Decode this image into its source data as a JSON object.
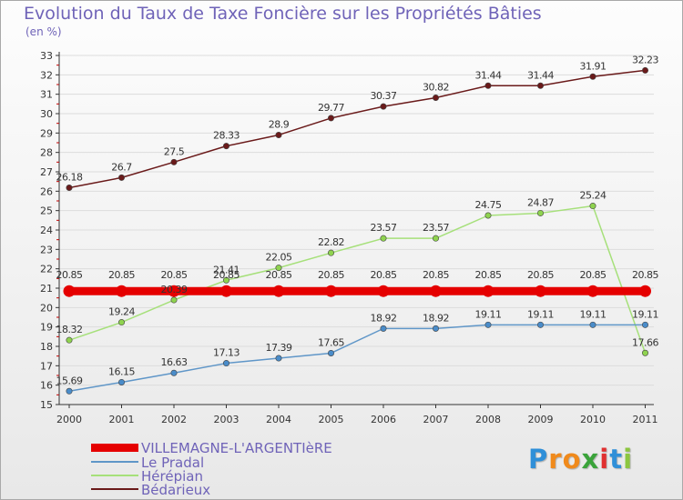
{
  "title": "Evolution du Taux de Taxe Foncière sur les Propriétés Bâties",
  "unit_label": "(en %)",
  "chart_data": {
    "type": "line",
    "title": "Evolution du Taux de Taxe Foncière sur les Propriétés Bâties",
    "ylabel": "(en %)",
    "xlabel": "",
    "ylim": [
      15,
      33
    ],
    "y_ticks": [
      15,
      16,
      17,
      18,
      19,
      20,
      21,
      22,
      23,
      24,
      25,
      26,
      27,
      28,
      29,
      30,
      31,
      32,
      33
    ],
    "categories": [
      "2000",
      "2001",
      "2002",
      "2003",
      "2004",
      "2005",
      "2006",
      "2007",
      "2008",
      "2009",
      "2010",
      "2011"
    ],
    "series": [
      {
        "name": "Bédarieux",
        "color": "#6a1a1a",
        "marker": "#6a1a1a",
        "values": [
          26.18,
          26.7,
          27.5,
          28.33,
          28.9,
          29.77,
          30.37,
          30.82,
          31.44,
          31.44,
          31.91,
          32.23
        ],
        "labels": [
          "26.18",
          "26.7",
          "27.5",
          "28.33",
          "28.9",
          "29.77",
          "30.37",
          "30.82",
          "31.44",
          "31.44",
          "31.91",
          "32.23"
        ]
      },
      {
        "name": "Hérépian",
        "color": "#a6e07a",
        "marker": "#8fd34f",
        "values": [
          18.32,
          19.24,
          20.39,
          21.41,
          22.05,
          22.82,
          23.57,
          23.57,
          24.75,
          24.87,
          25.24,
          17.66
        ],
        "labels": [
          "18.32",
          "19.24",
          "20.39",
          "21.41",
          "22.05",
          "22.82",
          "23.57",
          "23.57",
          "24.75",
          "24.87",
          "25.24",
          "17.66"
        ]
      },
      {
        "name": "Le Pradal",
        "color": "#5f96c8",
        "marker": "#4a8cc9",
        "values": [
          15.69,
          16.15,
          16.63,
          17.13,
          17.39,
          17.65,
          18.92,
          18.92,
          19.11,
          19.11,
          19.11,
          19.11
        ],
        "labels": [
          "15.69",
          "16.15",
          "16.63",
          "17.13",
          "17.39",
          "17.65",
          "18.92",
          "18.92",
          "19.11",
          "19.11",
          "19.11",
          "19.11"
        ]
      },
      {
        "name": "VILLEMAGNE-L'ARGENTIèRE",
        "color": "#e50000",
        "marker": "#e50000",
        "thick": true,
        "values": [
          20.85,
          20.85,
          20.85,
          20.85,
          20.85,
          20.85,
          20.85,
          20.85,
          20.85,
          20.85,
          20.85,
          20.85
        ],
        "labels": [
          "20.85",
          "20.85",
          "20.85",
          "20.85",
          "20.85",
          "20.85",
          "20.85",
          "20.85",
          "20.85",
          "20.85",
          "20.85",
          "20.85"
        ]
      }
    ],
    "legend": [
      {
        "name": "VILLEMAGNE-L'ARGENTIèRE",
        "color": "#e50000"
      },
      {
        "name": "Le Pradal",
        "color": "#5f96c8"
      },
      {
        "name": "Hérépian",
        "color": "#a6e07a"
      },
      {
        "name": "Bédarieux",
        "color": "#6a1a1a"
      }
    ],
    "legend_position": "bottom-left"
  },
  "logo": {
    "letters": [
      "P",
      "r",
      "o",
      "x",
      "i",
      "t",
      "i"
    ],
    "colors": [
      "#2f8fd8",
      "#f08a1c",
      "#f08a1c",
      "#3aa33a",
      "#e03030",
      "#2f8fd8",
      "#8cc63f"
    ]
  }
}
